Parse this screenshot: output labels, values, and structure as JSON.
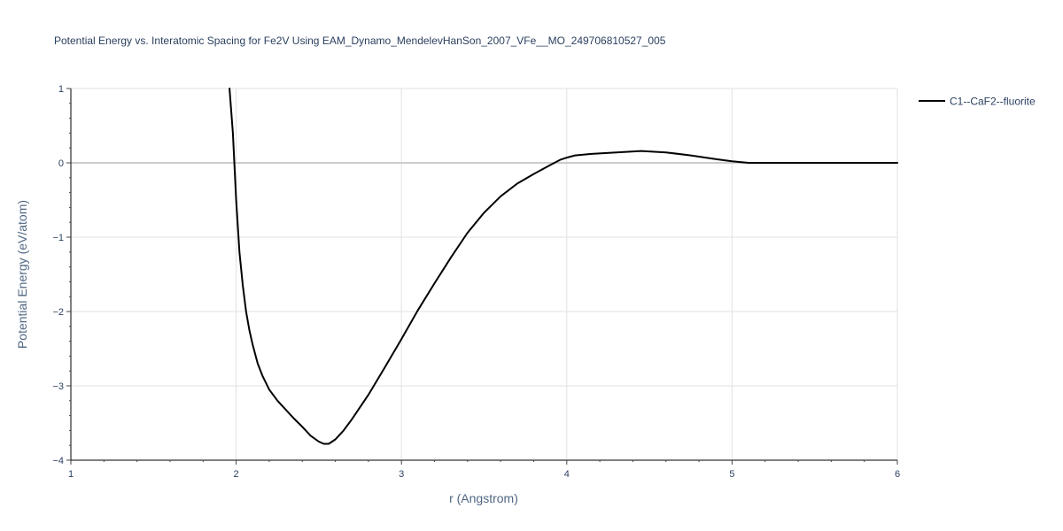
{
  "chart_data": {
    "type": "line",
    "title": "Potential Energy vs. Interatomic Spacing for Fe2V Using EAM_Dynamo_MendelevHanSon_2007_VFe__MO_249706810527_005",
    "xlabel": "r (Angstrom)",
    "ylabel": "Potential Energy (eV/atom)",
    "xlim": [
      1,
      6
    ],
    "ylim": [
      -4,
      1
    ],
    "xticks": [
      1,
      2,
      3,
      4,
      5,
      6
    ],
    "yticks": [
      -4,
      -3,
      -2,
      -1,
      0,
      1
    ],
    "xtick_labels": [
      "1",
      "2",
      "3",
      "4",
      "5",
      "6"
    ],
    "ytick_labels": [
      "−4",
      "−3",
      "−2",
      "−1",
      "0",
      "1"
    ],
    "grid": true,
    "legend_position": "top-right",
    "series": [
      {
        "name": "C1--CaF2--fluorite",
        "color": "#000000",
        "x": [
          1.96,
          1.98,
          2.0,
          2.02,
          2.04,
          2.06,
          2.08,
          2.1,
          2.13,
          2.16,
          2.2,
          2.25,
          2.3,
          2.35,
          2.4,
          2.45,
          2.5,
          2.53,
          2.56,
          2.6,
          2.65,
          2.7,
          2.8,
          2.9,
          3.0,
          3.1,
          3.2,
          3.3,
          3.4,
          3.5,
          3.6,
          3.7,
          3.8,
          3.9,
          3.96,
          4.0,
          4.05,
          4.15,
          4.3,
          4.45,
          4.6,
          4.75,
          4.9,
          5.0,
          5.1,
          5.2,
          5.5,
          6.0
        ],
        "y": [
          1.0,
          0.4,
          -0.5,
          -1.2,
          -1.65,
          -2.0,
          -2.25,
          -2.45,
          -2.7,
          -2.87,
          -3.05,
          -3.2,
          -3.32,
          -3.44,
          -3.55,
          -3.67,
          -3.75,
          -3.78,
          -3.78,
          -3.72,
          -3.6,
          -3.45,
          -3.12,
          -2.75,
          -2.37,
          -1.98,
          -1.62,
          -1.27,
          -0.94,
          -0.67,
          -0.45,
          -0.28,
          -0.15,
          -0.03,
          0.04,
          0.07,
          0.1,
          0.12,
          0.14,
          0.16,
          0.14,
          0.1,
          0.05,
          0.02,
          0.0,
          0.0,
          0.0,
          0.0
        ]
      }
    ]
  }
}
